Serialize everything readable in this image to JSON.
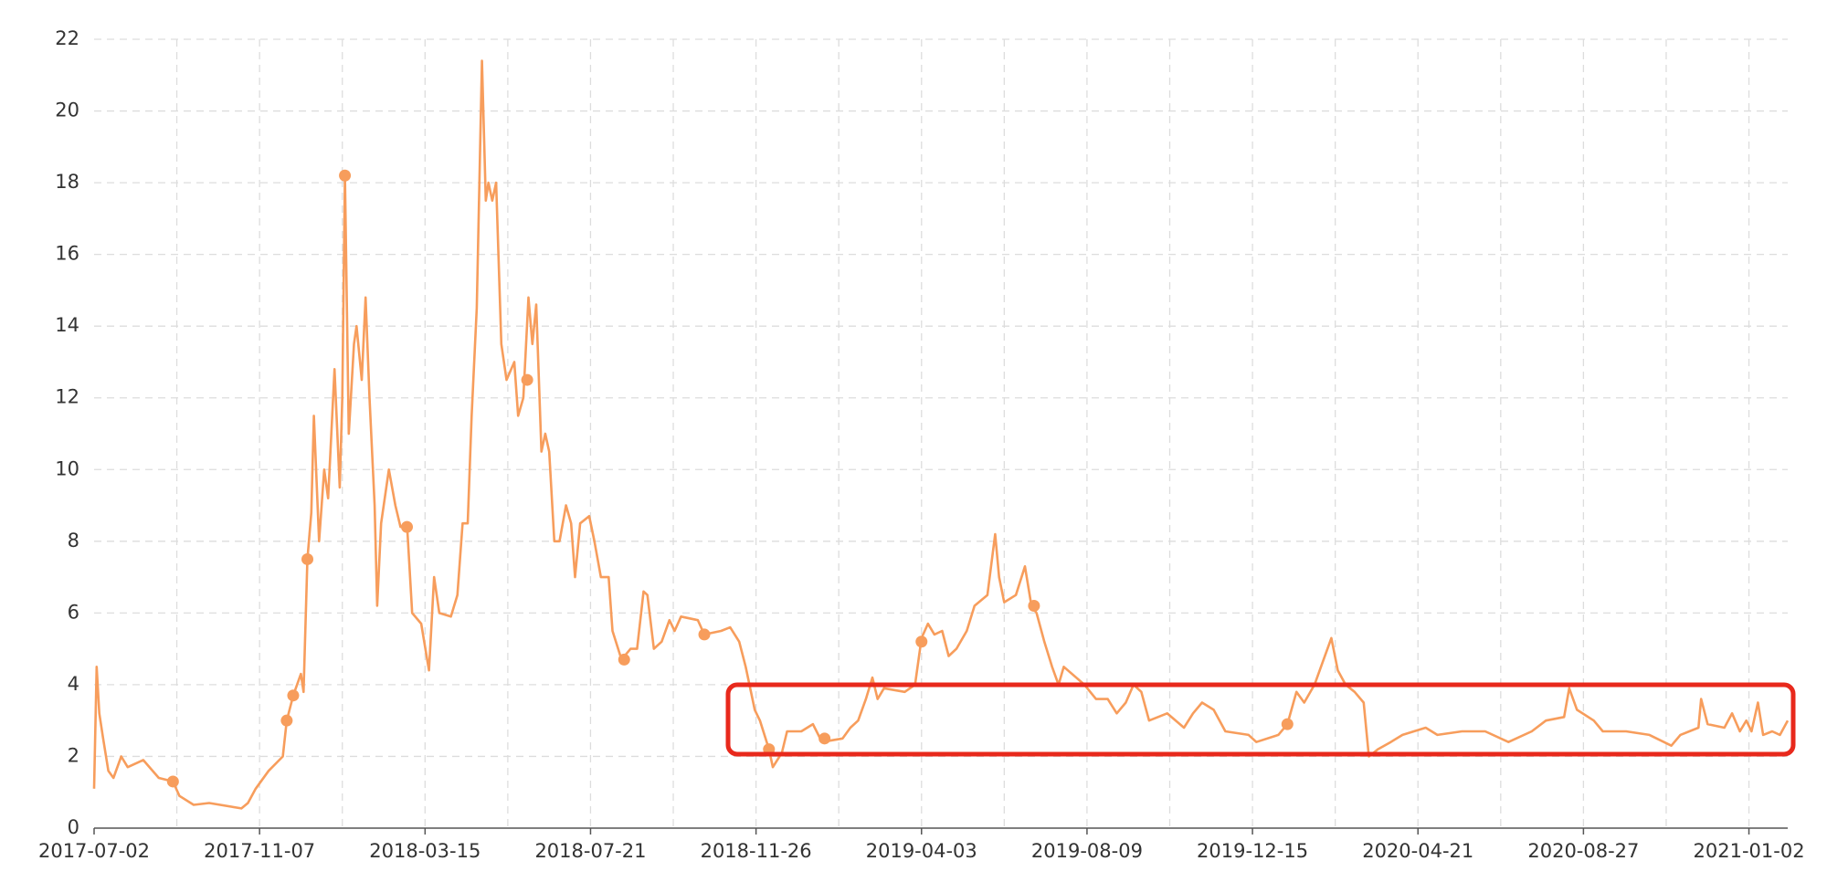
{
  "chart_data": {
    "type": "line",
    "color": "#f79d5c",
    "grid": true,
    "x": [
      "2017-07-02",
      "2017-07-04",
      "2017-07-06",
      "2017-07-09",
      "2017-07-13",
      "2017-07-17",
      "2017-07-23",
      "2017-07-28",
      "2017-08-09",
      "2017-08-21",
      "2017-09-01",
      "2017-09-06",
      "2017-09-17",
      "2017-09-29",
      "2017-10-24",
      "2017-10-29",
      "2017-11-04",
      "2017-11-14",
      "2017-11-25",
      "2017-11-28",
      "2017-12-03",
      "2017-12-09",
      "2017-12-11",
      "2017-12-14",
      "2017-12-17",
      "2017-12-19",
      "2017-12-23",
      "2017-12-27",
      "2017-12-30",
      "2018-01-04",
      "2018-01-08",
      "2018-01-10",
      "2018-01-12",
      "2018-01-15",
      "2018-01-19",
      "2018-01-21",
      "2018-01-25",
      "2018-01-28",
      "2018-01-31",
      "2018-02-04",
      "2018-02-06",
      "2018-02-09",
      "2018-02-15",
      "2018-02-20",
      "2018-02-24",
      "2018-03-01",
      "2018-03-05",
      "2018-03-12",
      "2018-03-18",
      "2018-03-22",
      "2018-03-26",
      "2018-04-04",
      "2018-04-09",
      "2018-04-13",
      "2018-04-17",
      "2018-04-20",
      "2018-04-24",
      "2018-04-28",
      "2018-05-01",
      "2018-05-03",
      "2018-05-06",
      "2018-05-09",
      "2018-05-13",
      "2018-05-17",
      "2018-05-23",
      "2018-05-26",
      "2018-05-30",
      "2018-06-03",
      "2018-06-06",
      "2018-06-09",
      "2018-06-13",
      "2018-06-16",
      "2018-06-19",
      "2018-06-23",
      "2018-06-27",
      "2018-07-02",
      "2018-07-06",
      "2018-07-09",
      "2018-07-13",
      "2018-07-20",
      "2018-07-24",
      "2018-07-29",
      "2018-08-04",
      "2018-08-07",
      "2018-08-14",
      "2018-08-21",
      "2018-08-26",
      "2018-08-31",
      "2018-09-03",
      "2018-09-08",
      "2018-09-14",
      "2018-09-20",
      "2018-09-24",
      "2018-09-29",
      "2018-10-12",
      "2018-10-17",
      "2018-10-30",
      "2018-11-06",
      "2018-11-13",
      "2018-11-18",
      "2018-11-25",
      "2018-11-29",
      "2018-12-06",
      "2018-12-09",
      "2018-12-16",
      "2018-12-20",
      "2018-12-31",
      "2019-01-09",
      "2019-01-16",
      "2019-02-01",
      "2019-02-07",
      "2019-02-13",
      "2019-02-19",
      "2019-02-24",
      "2019-02-28",
      "2019-03-05",
      "2019-03-21",
      "2019-03-29",
      "2019-04-03",
      "2019-04-08",
      "2019-04-13",
      "2019-04-19",
      "2019-04-24",
      "2019-04-30",
      "2019-05-08",
      "2019-05-14",
      "2019-05-24",
      "2019-05-30",
      "2019-06-02",
      "2019-06-06",
      "2019-06-15",
      "2019-06-22",
      "2019-06-27",
      "2019-07-01",
      "2019-07-07",
      "2019-07-13",
      "2019-07-18",
      "2019-07-22",
      "2019-08-07",
      "2019-08-16",
      "2019-08-25",
      "2019-09-01",
      "2019-09-08",
      "2019-09-14",
      "2019-09-20",
      "2019-09-26",
      "2019-10-10",
      "2019-10-23",
      "2019-10-30",
      "2019-11-06",
      "2019-11-15",
      "2019-11-24",
      "2019-12-12",
      "2019-12-18",
      "2020-01-04",
      "2020-01-11",
      "2020-01-18",
      "2020-01-24",
      "2020-02-01",
      "2020-02-07",
      "2020-02-14",
      "2020-02-19",
      "2020-02-25",
      "2020-03-03",
      "2020-03-10",
      "2020-03-14",
      "2020-03-21",
      "2020-03-31",
      "2020-04-09",
      "2020-04-27",
      "2020-05-06",
      "2020-05-25",
      "2020-06-12",
      "2020-06-30",
      "2020-07-18",
      "2020-07-29",
      "2020-08-12",
      "2020-08-16",
      "2020-08-22",
      "2020-09-04",
      "2020-09-11",
      "2020-09-29",
      "2020-10-17",
      "2020-11-03",
      "2020-11-10",
      "2020-11-24",
      "2020-11-26",
      "2020-12-01",
      "2020-12-14",
      "2020-12-20",
      "2020-12-26",
      "2020-12-31",
      "2021-01-04",
      "2021-01-09",
      "2021-01-13",
      "2021-01-20",
      "2021-01-26",
      "2021-02-01"
    ],
    "values": [
      1.1,
      4.5,
      3.2,
      2.5,
      1.6,
      1.4,
      2.0,
      1.7,
      1.9,
      1.4,
      1.3,
      0.9,
      0.65,
      0.7,
      0.55,
      0.7,
      1.1,
      1.6,
      2.0,
      3.0,
      3.7,
      4.3,
      3.8,
      7.5,
      8.8,
      11.5,
      8.0,
      10.0,
      9.2,
      12.8,
      9.5,
      12.0,
      18.2,
      11.0,
      13.5,
      14.0,
      12.5,
      14.8,
      12.0,
      9.0,
      6.2,
      8.5,
      10.0,
      9.0,
      8.4,
      8.5,
      6.0,
      5.7,
      4.4,
      7.0,
      6.0,
      5.9,
      6.5,
      8.5,
      8.5,
      11.5,
      14.5,
      21.4,
      17.5,
      18.0,
      17.5,
      18.0,
      13.5,
      12.5,
      13.0,
      11.5,
      12.0,
      14.8,
      13.5,
      14.6,
      10.5,
      11.0,
      10.5,
      8.0,
      8.0,
      9.0,
      8.5,
      7.0,
      8.5,
      8.7,
      8.0,
      7.0,
      7.0,
      5.5,
      4.7,
      5.0,
      5.0,
      6.6,
      6.5,
      5.0,
      5.2,
      5.8,
      5.5,
      5.9,
      5.8,
      5.4,
      5.5,
      5.6,
      5.2,
      4.5,
      3.3,
      3.0,
      2.2,
      1.7,
      2.1,
      2.7,
      2.7,
      2.9,
      2.4,
      2.5,
      2.8,
      3.0,
      3.6,
      4.2,
      3.6,
      3.9,
      3.8,
      4.0,
      5.3,
      5.7,
      5.4,
      5.5,
      4.8,
      5.0,
      5.5,
      6.2,
      6.5,
      8.2,
      7.0,
      6.3,
      6.5,
      7.3,
      6.2,
      6.0,
      5.2,
      4.5,
      4.0,
      4.5,
      4.0,
      3.6,
      3.6,
      3.2,
      3.5,
      4.0,
      3.8,
      3.0,
      3.2,
      2.8,
      3.2,
      3.5,
      3.3,
      2.7,
      2.6,
      2.4,
      2.6,
      2.9,
      3.8,
      3.5,
      4.0,
      4.6,
      5.3,
      4.4,
      4.0,
      3.8,
      3.5,
      2.0,
      2.2,
      2.4,
      2.6,
      2.8,
      2.6,
      2.7,
      2.7,
      2.4,
      2.7,
      3.0,
      3.1,
      3.9,
      3.3,
      3.0,
      2.7,
      2.7,
      2.6,
      2.3,
      2.6,
      2.8,
      3.6,
      2.9,
      2.8,
      3.2,
      2.7,
      3.0,
      2.7,
      3.5,
      2.6,
      2.7,
      2.6,
      3.0
    ],
    "marker_x": [
      "2017-09-01",
      "2017-11-28",
      "2017-12-03",
      "2017-12-14",
      "2018-01-12",
      "2018-03-01",
      "2018-06-02",
      "2018-08-16",
      "2018-10-17",
      "2018-12-06",
      "2019-01-18",
      "2019-04-03",
      "2019-06-29",
      "2020-01-11"
    ],
    "marker_values": [
      1.3,
      3.0,
      3.7,
      7.5,
      18.2,
      8.4,
      12.5,
      4.7,
      5.4,
      2.2,
      2.5,
      5.2,
      6.2,
      2.9
    ],
    "xlim": [
      "2017-07-02",
      "2021-02-01"
    ],
    "xticks": [
      "2017-07-02",
      "2017-11-07",
      "2018-03-15",
      "2018-07-21",
      "2018-11-26",
      "2019-04-03",
      "2019-08-09",
      "2019-12-15",
      "2020-04-21",
      "2020-08-27",
      "2021-01-02"
    ],
    "ylim": [
      0,
      22
    ],
    "yticks": [
      0,
      2,
      4,
      6,
      8,
      10,
      12,
      14,
      16,
      18,
      20,
      22
    ]
  }
}
